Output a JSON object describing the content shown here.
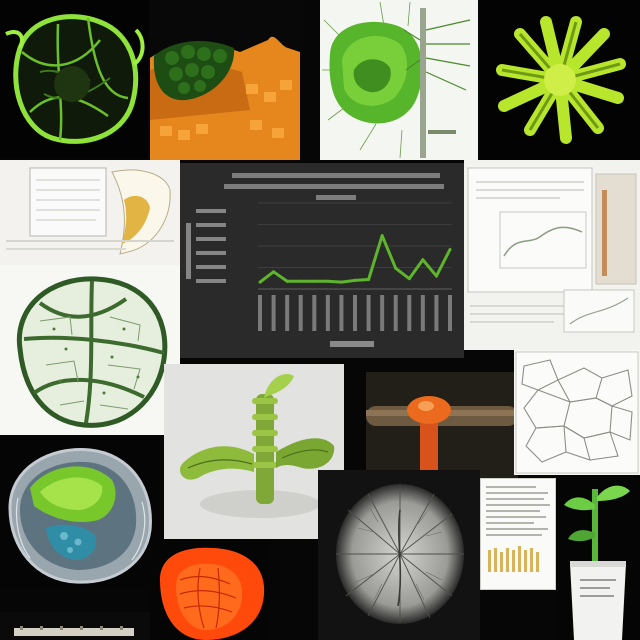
{
  "collage": {
    "tiles": [
      {
        "id": "green-cell-network"
      },
      {
        "id": "orange-green-tissue-block"
      },
      {
        "id": "green-seed-illustration"
      },
      {
        "id": "lime-fan-structure"
      },
      {
        "id": "document-sheet-left"
      },
      {
        "id": "dark-line-chart-panel"
      },
      {
        "id": "document-sheet-right"
      },
      {
        "id": "leaf-vein-cell-drawing"
      },
      {
        "id": "green-3d-plant-structure"
      },
      {
        "id": "orange-stem-macro-photo"
      },
      {
        "id": "cell-outline-sketch"
      },
      {
        "id": "green-cell-cross-section"
      },
      {
        "id": "grey-radial-vein-disc"
      },
      {
        "id": "text-document-sheet"
      },
      {
        "id": "seedling-in-cup"
      },
      {
        "id": "orange-red-tissue-blob"
      },
      {
        "id": "bottom-strip-photo"
      }
    ]
  },
  "chart_data": {
    "type": "line",
    "series": [
      {
        "values": [
          8,
          20,
          9,
          9,
          9,
          9,
          8,
          10,
          11,
          62,
          24,
          12,
          34,
          15,
          46
        ]
      }
    ],
    "ylim": [
      0,
      100
    ]
  },
  "colors": {
    "background": "#050505",
    "chart_panel": "#2a2a2a",
    "chart_line": "#5eb52c",
    "lime": "#a6e32a",
    "plant_green": "#5aa42c",
    "orange": "#e5871d",
    "red_orange": "#ff4a0c"
  }
}
